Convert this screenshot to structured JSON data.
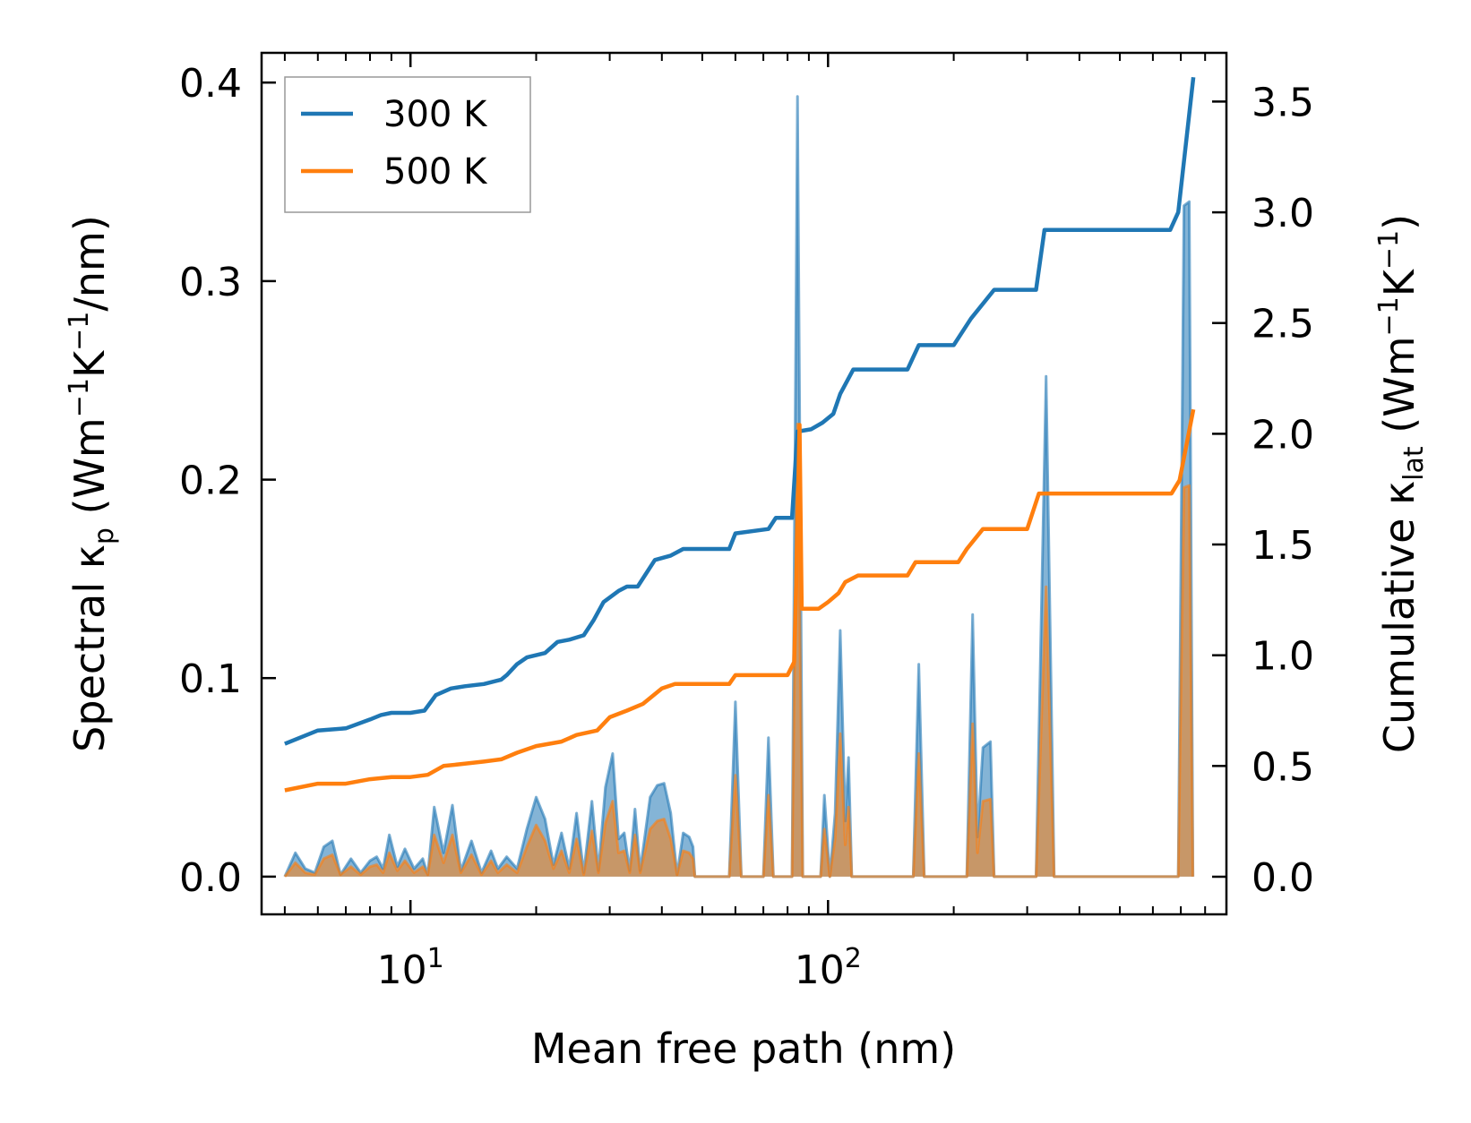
{
  "chart_data": {
    "type": "line",
    "title": "",
    "xlabel": "Mean free path (nm)",
    "xscale": "log",
    "xlim": [
      4.4,
      900
    ],
    "x_ticks": [
      {
        "value": 10,
        "base": "10",
        "exp": "1"
      },
      {
        "value": 100,
        "base": "10",
        "exp": "2"
      }
    ],
    "left_axis": {
      "label_main": "Spectral κ",
      "label_sub": "p",
      "label_unit_open": " (Wm",
      "label_sup1": "−1",
      "label_k": "K",
      "label_sup2": "−1",
      "label_close": "/nm)",
      "ylim": [
        -0.019,
        0.415
      ],
      "ticks": [
        0.0,
        0.1,
        0.2,
        0.3,
        0.4
      ],
      "tick_labels": [
        "0.0",
        "0.1",
        "0.2",
        "0.3",
        "0.4"
      ]
    },
    "right_axis": {
      "label_main": "Cumulative κ",
      "label_sub": "lat",
      "label_unit_open": " (Wm",
      "label_sup1": "−1",
      "label_k": "K",
      "label_sup2": "−1",
      "label_close": ")",
      "ylim": [
        -0.17,
        3.72
      ],
      "ticks": [
        0.0,
        0.5,
        1.0,
        1.5,
        2.0,
        2.5,
        3.0,
        3.5
      ],
      "tick_labels": [
        "0.0",
        "0.5",
        "1.0",
        "1.5",
        "2.0",
        "2.5",
        "3.0",
        "3.5"
      ]
    },
    "legend": {
      "location": "top-left",
      "entries": [
        {
          "label": "300 K",
          "color": "#1f77b4"
        },
        {
          "label": "500 K",
          "color": "#ff7f0e"
        }
      ]
    },
    "series": [
      {
        "name": "300 K",
        "color": "#1f77b4",
        "axis": "right",
        "kind": "cumulative",
        "points": [
          [
            5,
            0.6
          ],
          [
            6,
            0.66
          ],
          [
            7,
            0.67
          ],
          [
            8,
            0.71
          ],
          [
            8.5,
            0.73
          ],
          [
            9,
            0.74
          ],
          [
            10,
            0.74
          ],
          [
            10.8,
            0.75
          ],
          [
            11.5,
            0.82
          ],
          [
            12.5,
            0.85
          ],
          [
            13.5,
            0.86
          ],
          [
            15,
            0.87
          ],
          [
            16.5,
            0.89
          ],
          [
            17,
            0.91
          ],
          [
            18,
            0.96
          ],
          [
            19,
            0.99
          ],
          [
            21,
            1.01
          ],
          [
            22.5,
            1.06
          ],
          [
            24,
            1.07
          ],
          [
            26,
            1.09
          ],
          [
            27.5,
            1.16
          ],
          [
            29,
            1.24
          ],
          [
            31.5,
            1.29
          ],
          [
            33,
            1.31
          ],
          [
            35,
            1.31
          ],
          [
            38.5,
            1.43
          ],
          [
            42,
            1.45
          ],
          [
            45,
            1.48
          ],
          [
            58,
            1.48
          ],
          [
            60,
            1.55
          ],
          [
            72,
            1.57
          ],
          [
            75,
            1.62
          ],
          [
            82,
            1.62
          ],
          [
            84.5,
            2.01
          ],
          [
            91,
            2.02
          ],
          [
            97,
            2.05
          ],
          [
            103,
            2.09
          ],
          [
            107,
            2.18
          ],
          [
            115,
            2.29
          ],
          [
            155,
            2.29
          ],
          [
            165,
            2.4
          ],
          [
            200,
            2.4
          ],
          [
            220,
            2.52
          ],
          [
            250,
            2.65
          ],
          [
            315,
            2.65
          ],
          [
            330,
            2.92
          ],
          [
            660,
            2.92
          ],
          [
            690,
            3.0
          ],
          [
            750,
            3.61
          ]
        ]
      },
      {
        "name": "500 K",
        "color": "#ff7f0e",
        "axis": "right",
        "kind": "cumulative",
        "points": [
          [
            5,
            0.39
          ],
          [
            6,
            0.42
          ],
          [
            7,
            0.42
          ],
          [
            8,
            0.44
          ],
          [
            9,
            0.45
          ],
          [
            10,
            0.45
          ],
          [
            11,
            0.46
          ],
          [
            12,
            0.5
          ],
          [
            13.5,
            0.51
          ],
          [
            15,
            0.52
          ],
          [
            16.5,
            0.53
          ],
          [
            18,
            0.56
          ],
          [
            20,
            0.59
          ],
          [
            23,
            0.61
          ],
          [
            25,
            0.64
          ],
          [
            28,
            0.66
          ],
          [
            30,
            0.72
          ],
          [
            33,
            0.75
          ],
          [
            36,
            0.78
          ],
          [
            40,
            0.85
          ],
          [
            43,
            0.87
          ],
          [
            58,
            0.87
          ],
          [
            60,
            0.91
          ],
          [
            80,
            0.91
          ],
          [
            83,
            0.97
          ],
          [
            84,
            1.36
          ],
          [
            85.5,
            2.04
          ],
          [
            86.5,
            1.21
          ],
          [
            95,
            1.21
          ],
          [
            100,
            1.24
          ],
          [
            106,
            1.28
          ],
          [
            110,
            1.33
          ],
          [
            118,
            1.36
          ],
          [
            155,
            1.36
          ],
          [
            162,
            1.42
          ],
          [
            205,
            1.42
          ],
          [
            215,
            1.48
          ],
          [
            235,
            1.57
          ],
          [
            300,
            1.57
          ],
          [
            320,
            1.73
          ],
          [
            665,
            1.73
          ],
          [
            695,
            1.79
          ],
          [
            750,
            2.11
          ]
        ]
      },
      {
        "name": "300 K spectral",
        "color": "#1f77b4",
        "axis": "left",
        "kind": "spectral",
        "points": [
          [
            5,
            0.0
          ],
          [
            5.3,
            0.012
          ],
          [
            5.6,
            0.004
          ],
          [
            5.9,
            0.002
          ],
          [
            6.2,
            0.015
          ],
          [
            6.5,
            0.018
          ],
          [
            6.8,
            0.001
          ],
          [
            7.2,
            0.009
          ],
          [
            7.6,
            0.002
          ],
          [
            8,
            0.008
          ],
          [
            8.3,
            0.01
          ],
          [
            8.6,
            0.004
          ],
          [
            8.9,
            0.021
          ],
          [
            9.3,
            0.005
          ],
          [
            9.7,
            0.014
          ],
          [
            10.2,
            0.004
          ],
          [
            10.7,
            0.009
          ],
          [
            11,
            0.001
          ],
          [
            11.4,
            0.035
          ],
          [
            12,
            0.012
          ],
          [
            12.6,
            0.036
          ],
          [
            13.2,
            0.003
          ],
          [
            14,
            0.018
          ],
          [
            14.8,
            0.002
          ],
          [
            15.6,
            0.013
          ],
          [
            16.2,
            0.004
          ],
          [
            17,
            0.01
          ],
          [
            18,
            0.004
          ],
          [
            19,
            0.024
          ],
          [
            20,
            0.04
          ],
          [
            21,
            0.029
          ],
          [
            22,
            0.006
          ],
          [
            23,
            0.022
          ],
          [
            24,
            0.004
          ],
          [
            25,
            0.032
          ],
          [
            26,
            0.002
          ],
          [
            27.2,
            0.038
          ],
          [
            28.2,
            0.003
          ],
          [
            29.3,
            0.045
          ],
          [
            30.5,
            0.062
          ],
          [
            31.5,
            0.019
          ],
          [
            32.5,
            0.022
          ],
          [
            33.5,
            0.003
          ],
          [
            34.5,
            0.034
          ],
          [
            35.5,
            0.003
          ],
          [
            37.5,
            0.04
          ],
          [
            39,
            0.046
          ],
          [
            40.5,
            0.047
          ],
          [
            42,
            0.032
          ],
          [
            43.5,
            0.001
          ],
          [
            45,
            0.022
          ],
          [
            46.5,
            0.02
          ],
          [
            47.5,
            0.015
          ],
          [
            48,
            0.0
          ],
          [
            58,
            0.0
          ],
          [
            60,
            0.088
          ],
          [
            62,
            0.0
          ],
          [
            70,
            0.0
          ],
          [
            72,
            0.07
          ],
          [
            74,
            0.0
          ],
          [
            82,
            0.0
          ],
          [
            84.5,
            0.393
          ],
          [
            87,
            0.0
          ],
          [
            96,
            0.0
          ],
          [
            98,
            0.041
          ],
          [
            101,
            0.0
          ],
          [
            104,
            0.032
          ],
          [
            107,
            0.124
          ],
          [
            110,
            0.028
          ],
          [
            112,
            0.06
          ],
          [
            114,
            0.0
          ],
          [
            160,
            0.0
          ],
          [
            165,
            0.107
          ],
          [
            170,
            0.0
          ],
          [
            215,
            0.0
          ],
          [
            222,
            0.132
          ],
          [
            228,
            0.02
          ],
          [
            235,
            0.065
          ],
          [
            245,
            0.068
          ],
          [
            250,
            0.0
          ],
          [
            315,
            0.0
          ],
          [
            333,
            0.252
          ],
          [
            348,
            0.0
          ],
          [
            690,
            0.0
          ],
          [
            712,
            0.338
          ],
          [
            733,
            0.34
          ],
          [
            748,
            0.0
          ]
        ]
      },
      {
        "name": "500 K spectral",
        "color": "#ff7f0e",
        "axis": "left",
        "kind": "spectral",
        "points": [
          [
            5,
            0.0
          ],
          [
            5.3,
            0.007
          ],
          [
            5.6,
            0.002
          ],
          [
            5.9,
            0.001
          ],
          [
            6.2,
            0.009
          ],
          [
            6.5,
            0.011
          ],
          [
            6.8,
            0.001
          ],
          [
            7.2,
            0.005
          ],
          [
            7.6,
            0.001
          ],
          [
            8,
            0.005
          ],
          [
            8.3,
            0.006
          ],
          [
            8.6,
            0.002
          ],
          [
            8.9,
            0.012
          ],
          [
            9.3,
            0.003
          ],
          [
            9.7,
            0.008
          ],
          [
            10.2,
            0.002
          ],
          [
            10.7,
            0.005
          ],
          [
            11,
            0.001
          ],
          [
            11.4,
            0.021
          ],
          [
            12,
            0.007
          ],
          [
            12.6,
            0.021
          ],
          [
            13.2,
            0.002
          ],
          [
            14,
            0.011
          ],
          [
            14.8,
            0.001
          ],
          [
            15.6,
            0.008
          ],
          [
            16.2,
            0.002
          ],
          [
            17,
            0.006
          ],
          [
            18,
            0.002
          ],
          [
            19,
            0.015
          ],
          [
            20,
            0.026
          ],
          [
            21,
            0.018
          ],
          [
            22,
            0.004
          ],
          [
            23,
            0.013
          ],
          [
            24,
            0.002
          ],
          [
            25,
            0.019
          ],
          [
            26,
            0.001
          ],
          [
            27.2,
            0.023
          ],
          [
            28.2,
            0.002
          ],
          [
            29.3,
            0.027
          ],
          [
            30.5,
            0.038
          ],
          [
            31.5,
            0.012
          ],
          [
            32.5,
            0.013
          ],
          [
            33.5,
            0.002
          ],
          [
            34.5,
            0.021
          ],
          [
            35.5,
            0.002
          ],
          [
            37.5,
            0.024
          ],
          [
            39,
            0.028
          ],
          [
            40.5,
            0.029
          ],
          [
            42,
            0.019
          ],
          [
            43.5,
            0.001
          ],
          [
            45,
            0.013
          ],
          [
            46.5,
            0.012
          ],
          [
            47.5,
            0.009
          ],
          [
            48,
            0.0
          ],
          [
            58,
            0.0
          ],
          [
            60,
            0.051
          ],
          [
            62,
            0.0
          ],
          [
            70,
            0.0
          ],
          [
            72,
            0.041
          ],
          [
            74,
            0.0
          ],
          [
            82,
            0.0
          ],
          [
            84.5,
            0.228
          ],
          [
            87,
            0.0
          ],
          [
            96,
            0.0
          ],
          [
            98,
            0.024
          ],
          [
            101,
            0.0
          ],
          [
            104,
            0.019
          ],
          [
            107,
            0.072
          ],
          [
            110,
            0.016
          ],
          [
            112,
            0.035
          ],
          [
            114,
            0.0
          ],
          [
            160,
            0.0
          ],
          [
            165,
            0.062
          ],
          [
            170,
            0.0
          ],
          [
            215,
            0.0
          ],
          [
            222,
            0.077
          ],
          [
            228,
            0.012
          ],
          [
            235,
            0.038
          ],
          [
            245,
            0.039
          ],
          [
            250,
            0.0
          ],
          [
            315,
            0.0
          ],
          [
            333,
            0.146
          ],
          [
            348,
            0.0
          ],
          [
            690,
            0.0
          ],
          [
            712,
            0.196
          ],
          [
            733,
            0.197
          ],
          [
            748,
            0.0
          ]
        ]
      }
    ]
  }
}
